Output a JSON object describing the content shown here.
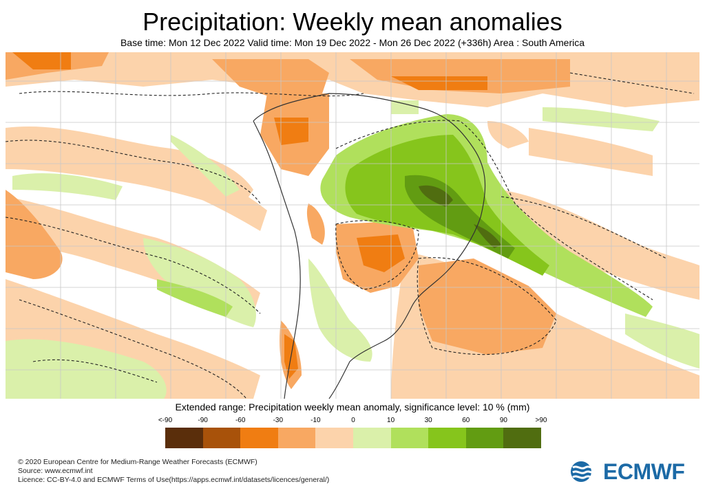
{
  "title": "Precipitation: Weekly mean anomalies",
  "subtitle": "Base time: Mon 12 Dec 2022 Valid time: Mon 19 Dec 2022 - Mon 26 Dec 2022 (+336h) Area : South America",
  "legend": {
    "title": "Extended range: Precipitation weekly mean anomaly, significance level: 10 % (mm)",
    "ticks": [
      "<-90",
      "-90",
      "-60",
      "-30",
      "-10",
      "0",
      "10",
      "30",
      "60",
      "90",
      ">90"
    ],
    "colors": [
      "#5a2e0b",
      "#a8520a",
      "#f07d12",
      "#f8a862",
      "#fcd3ab",
      "#daf0aa",
      "#b0e05c",
      "#86c51c",
      "#629c12",
      "#506d10"
    ]
  },
  "footer": [
    "© 2020 European Centre for Medium-Range Weather Forecasts (ECMWF)",
    "Source: www.ecmwf.int",
    "Licence: CC-BY-4.0 and ECMWF Terms of Use(https://apps.ecmwf.int/datasets/licences/general/)"
  ],
  "logo_text": "ECMWF",
  "logo_color": "#1c6aa6",
  "map": {
    "area": "South America",
    "contour_style": "dashed significance contours",
    "colors": {
      "dry_light": "#fcd3ab",
      "dry_mid": "#f8a862",
      "dry_strong": "#f07d12",
      "wet_light": "#daf0aa",
      "wet_mid": "#b0e05c",
      "wet_strong": "#86c51c",
      "wet_darker": "#629c12",
      "wet_darkest": "#506d10",
      "coast": "#333333",
      "grid": "#c8c8c8"
    }
  }
}
